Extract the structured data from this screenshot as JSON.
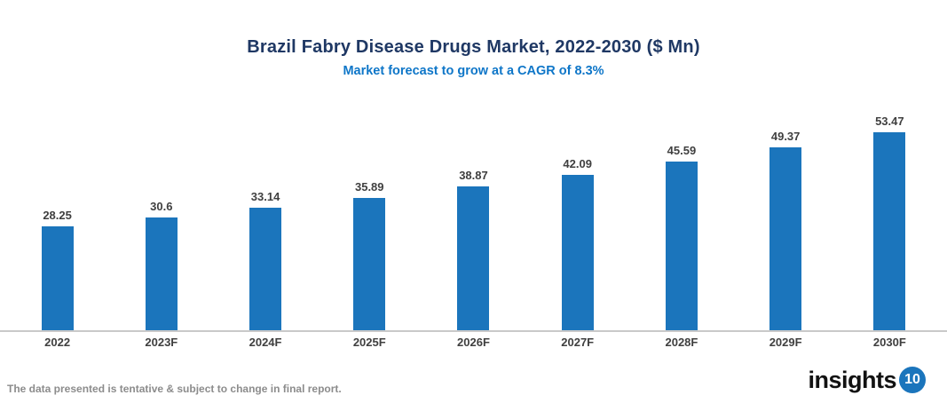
{
  "chart_data": {
    "type": "bar",
    "title": "Brazil Fabry Disease Drugs Market, 2022-2030 ($ Mn)",
    "subtitle": "Market forecast to grow at a CAGR of 8.3%",
    "categories": [
      "2022",
      "2023F",
      "2024F",
      "2025F",
      "2026F",
      "2027F",
      "2028F",
      "2029F",
      "2030F"
    ],
    "values": [
      28.25,
      30.6,
      33.14,
      35.89,
      38.87,
      42.09,
      45.59,
      49.37,
      53.47
    ],
    "xlabel": "",
    "ylabel": "",
    "ylim": [
      0,
      57
    ],
    "grid": false,
    "legend": false,
    "data_labels": true,
    "bar_color": "#1B75BC",
    "axis_line_color": "#C9C9C9",
    "title_color": "#1F3864",
    "subtitle_color": "#0E76C8",
    "label_color": "#3F3F3F"
  },
  "footer": {
    "disclaimer": "The data presented is tentative & subject to change in final report.",
    "logo_text": "insights",
    "logo_badge": "10",
    "logo_badge_color": "#1B75BC"
  }
}
